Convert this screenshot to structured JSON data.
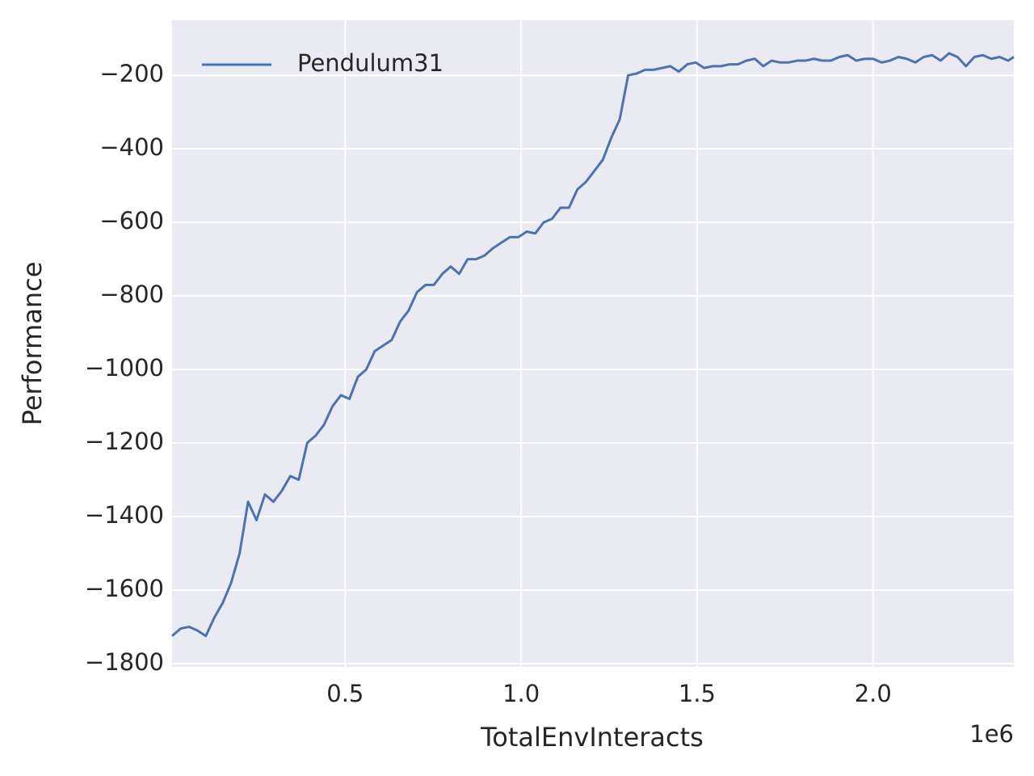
{
  "chart_data": {
    "type": "line",
    "xlabel": "TotalEnvInteracts",
    "ylabel": "Performance",
    "x_offset_text": "1e6",
    "x": [
      0.008,
      0.032,
      0.056,
      0.08,
      0.104,
      0.128,
      0.152,
      0.176,
      0.2,
      0.224,
      0.248,
      0.272,
      0.296,
      0.32,
      0.344,
      0.368,
      0.392,
      0.416,
      0.44,
      0.464,
      0.488,
      0.512,
      0.536,
      0.56,
      0.584,
      0.608,
      0.632,
      0.656,
      0.68,
      0.704,
      0.728,
      0.752,
      0.776,
      0.8,
      0.824,
      0.848,
      0.872,
      0.896,
      0.92,
      0.944,
      0.968,
      0.992,
      1.016,
      1.04,
      1.064,
      1.088,
      1.112,
      1.136,
      1.16,
      1.184,
      1.208,
      1.232,
      1.256,
      1.28,
      1.304,
      1.328,
      1.352,
      1.376,
      1.4,
      1.424,
      1.448,
      1.472,
      1.496,
      1.52,
      1.544,
      1.568,
      1.592,
      1.616,
      1.64,
      1.664,
      1.688,
      1.712,
      1.736,
      1.76,
      1.784,
      1.808,
      1.832,
      1.856,
      1.88,
      1.904,
      1.928,
      1.952,
      1.976,
      2.0,
      2.024,
      2.048,
      2.072,
      2.096,
      2.12,
      2.144,
      2.168,
      2.192,
      2.216,
      2.24,
      2.264,
      2.288,
      2.312,
      2.336,
      2.36,
      2.384,
      2.4
    ],
    "series": [
      {
        "name": "Pendulum31",
        "color": "#4c72b0",
        "values": [
          -1725,
          -1705,
          -1700,
          -1710,
          -1725,
          -1675,
          -1635,
          -1580,
          -1500,
          -1360,
          -1410,
          -1340,
          -1360,
          -1330,
          -1290,
          -1300,
          -1200,
          -1180,
          -1150,
          -1100,
          -1070,
          -1080,
          -1020,
          -1000,
          -950,
          -935,
          -920,
          -870,
          -840,
          -790,
          -770,
          -770,
          -740,
          -720,
          -740,
          -700,
          -700,
          -690,
          -670,
          -655,
          -640,
          -640,
          -625,
          -630,
          -600,
          -590,
          -560,
          -560,
          -510,
          -490,
          -460,
          -430,
          -370,
          -320,
          -200,
          -195,
          -185,
          -185,
          -180,
          -175,
          -190,
          -170,
          -165,
          -180,
          -175,
          -175,
          -170,
          -170,
          -160,
          -155,
          -175,
          -160,
          -165,
          -165,
          -160,
          -160,
          -155,
          -160,
          -160,
          -150,
          -145,
          -160,
          -155,
          -155,
          -165,
          -160,
          -150,
          -155,
          -165,
          -150,
          -145,
          -160,
          -140,
          -150,
          -175,
          -150,
          -145,
          -155,
          -150,
          -160,
          -150
        ]
      }
    ],
    "xlim": [
      0.008,
      2.4
    ],
    "ylim": [
      -1809,
      -50
    ],
    "xticks": [
      0.5,
      {
        "value": 1,
        "label": "1.0"
      },
      1.5,
      {
        "value": 2,
        "label": "2.0"
      }
    ],
    "yticks": [
      {
        "value": -1800,
        "label": "−1800"
      },
      {
        "value": -1600,
        "label": "−1600"
      },
      {
        "value": -1400,
        "label": "−1400"
      },
      {
        "value": -1200,
        "label": "−1200"
      },
      {
        "value": -1000,
        "label": "−1000"
      },
      {
        "value": -800,
        "label": "−800"
      },
      {
        "value": -600,
        "label": "−600"
      },
      {
        "value": -400,
        "label": "−400"
      },
      {
        "value": -200,
        "label": "−200"
      }
    ],
    "grid": true,
    "background": "#eaeaf2",
    "legend": "upper-left"
  }
}
